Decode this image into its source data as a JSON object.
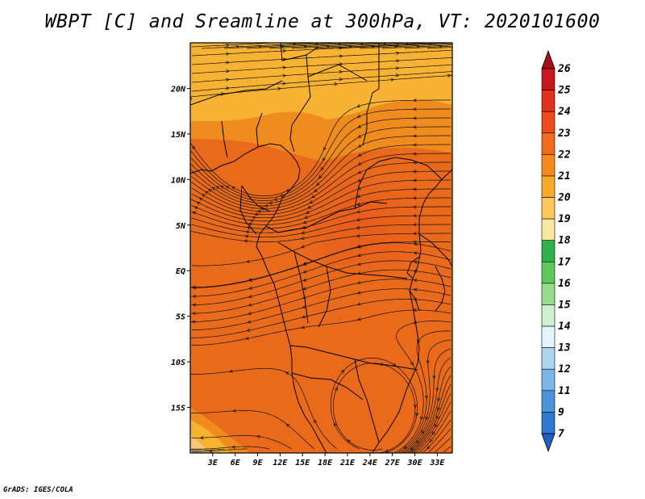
{
  "title": "WBPT [C] and Sreamline at 300hPa, VT: 2020101600",
  "credit": "GrADS: IGES/COLA",
  "map": {
    "lon_range": [
      0,
      35
    ],
    "lat_range": [
      -20,
      25
    ],
    "lon_ticks": [
      "3E",
      "6E",
      "9E",
      "12E",
      "15E",
      "18E",
      "21E",
      "24E",
      "27E",
      "30E",
      "33E"
    ],
    "lat_ticks": [
      "20N",
      "15N",
      "10N",
      "5N",
      "EQ",
      "5S",
      "10S",
      "15S"
    ],
    "field_colors": {
      "warm_22": "#ea6a1c",
      "warm_21": "#f08c1e",
      "warm_20": "#f7b233",
      "cool_19": "#f4c77a"
    }
  },
  "colorbar": {
    "labels": [
      "26",
      "25",
      "24",
      "23",
      "22",
      "21",
      "20",
      "19",
      "18",
      "17",
      "16",
      "15",
      "14",
      "13",
      "12",
      "11",
      "9",
      "7"
    ],
    "colors": [
      "#a50f15",
      "#c8171c",
      "#e0301e",
      "#ec4c1b",
      "#f26c19",
      "#f58a1f",
      "#f9aa2b",
      "#fcc85c",
      "#fbe9a2",
      "#2eb24b",
      "#5ec85b",
      "#98dd8e",
      "#cff0ce",
      "#e6f4fb",
      "#aed6f1",
      "#7ab6e8",
      "#4c95db",
      "#2f78d0",
      "#1f5fc4"
    ]
  }
}
